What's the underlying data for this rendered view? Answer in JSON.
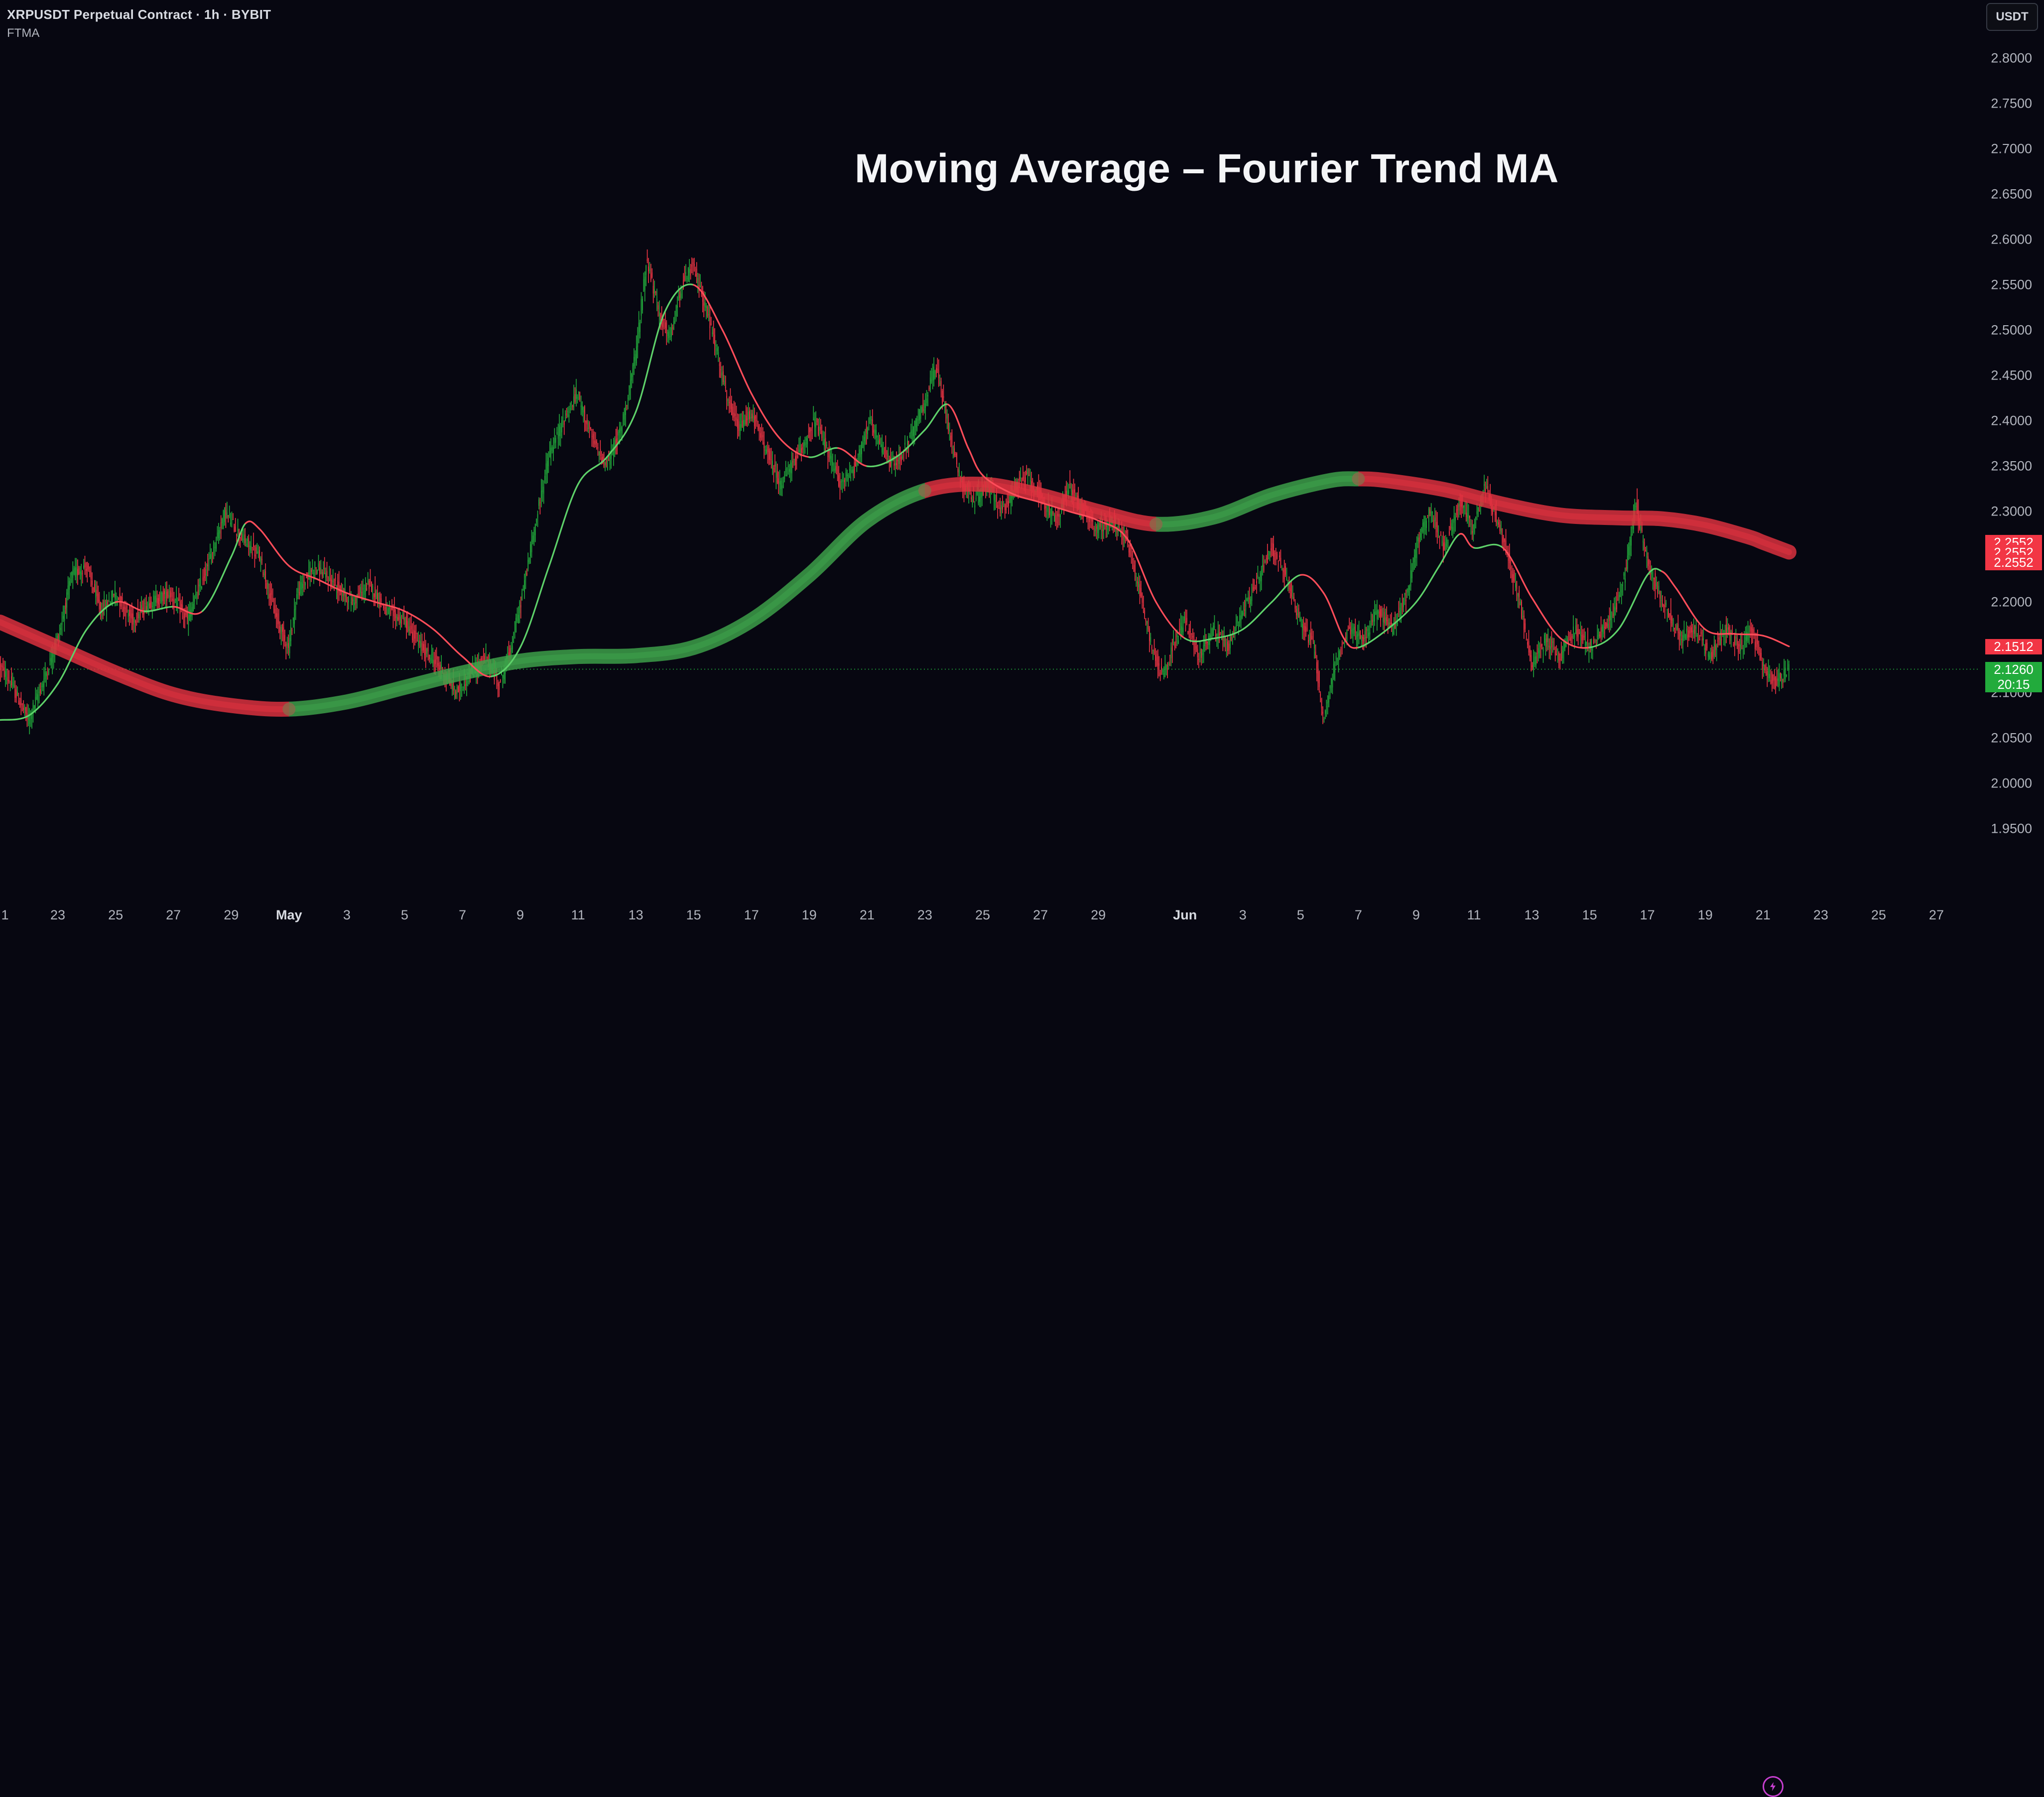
{
  "header": {
    "symbol_line": "XRPUSDT Perpetual Contract · 1h · BYBIT",
    "indicator_name": "FTMA"
  },
  "title": "Moving Average – Fourier Trend MA",
  "currency_button": "USDT",
  "colors": {
    "background": "#070711",
    "up_candle": "#22ab3c",
    "down_candle": "#f23645",
    "ma_bullish": "#3ea34a",
    "ma_bearish": "#e0323f",
    "fast_ma_up": "#5ed16a",
    "fast_ma_down": "#ff4d5a"
  },
  "price_axis": {
    "ticks": [
      "2.8000",
      "2.7500",
      "2.7000",
      "2.6500",
      "2.6000",
      "2.5500",
      "2.5000",
      "2.4500",
      "2.4000",
      "2.3500",
      "2.3000",
      "2.2500",
      "2.2000",
      "2.1500",
      "2.1000",
      "2.0500",
      "2.0000",
      "1.9500"
    ],
    "labels": [
      {
        "text": "2.2552",
        "color": "red",
        "price": 2.2662
      },
      {
        "text": "2.2552",
        "color": "red",
        "price": 2.2552
      },
      {
        "text": "2.2552",
        "color": "red",
        "price": 2.2442
      },
      {
        "text": "2.1512",
        "color": "red",
        "price": 2.1512
      },
      {
        "text": "2.1260",
        "color": "green",
        "price": 2.126
      },
      {
        "text": "20:15",
        "color": "green",
        "price": 2.1095
      }
    ]
  },
  "time_axis": {
    "ticks": [
      {
        "label": "1",
        "day": 1,
        "bold": false
      },
      {
        "label": "23",
        "day": 23,
        "bold": false
      },
      {
        "label": "25",
        "day": 25,
        "bold": false
      },
      {
        "label": "27",
        "day": 27,
        "bold": false
      },
      {
        "label": "29",
        "day": 29,
        "bold": false
      },
      {
        "label": "May",
        "day": 31,
        "bold": true
      },
      {
        "label": "3",
        "day": 33,
        "bold": false
      },
      {
        "label": "5",
        "day": 35,
        "bold": false
      },
      {
        "label": "7",
        "day": 37,
        "bold": false
      },
      {
        "label": "9",
        "day": 39,
        "bold": false
      },
      {
        "label": "11",
        "day": 41,
        "bold": false
      },
      {
        "label": "13",
        "day": 43,
        "bold": false
      },
      {
        "label": "15",
        "day": 45,
        "bold": false
      },
      {
        "label": "17",
        "day": 47,
        "bold": false
      },
      {
        "label": "19",
        "day": 49,
        "bold": false
      },
      {
        "label": "21",
        "day": 51,
        "bold": false
      },
      {
        "label": "23",
        "day": 53,
        "bold": false
      },
      {
        "label": "25",
        "day": 55,
        "bold": false
      },
      {
        "label": "27",
        "day": 57,
        "bold": false
      },
      {
        "label": "29",
        "day": 59,
        "bold": false
      },
      {
        "label": "Jun",
        "day": 62,
        "bold": true
      },
      {
        "label": "3",
        "day": 64,
        "bold": false
      },
      {
        "label": "5",
        "day": 66,
        "bold": false
      },
      {
        "label": "7",
        "day": 68,
        "bold": false
      },
      {
        "label": "9",
        "day": 70,
        "bold": false
      },
      {
        "label": "11",
        "day": 72,
        "bold": false
      },
      {
        "label": "13",
        "day": 74,
        "bold": false
      },
      {
        "label": "15",
        "day": 76,
        "bold": false
      },
      {
        "label": "17",
        "day": 78,
        "bold": false
      },
      {
        "label": "19",
        "day": 80,
        "bold": false
      },
      {
        "label": "21",
        "day": 82,
        "bold": false
      },
      {
        "label": "23",
        "day": 84,
        "bold": false
      },
      {
        "label": "25",
        "day": 86,
        "bold": false
      },
      {
        "label": "27",
        "day": 88,
        "bold": false
      }
    ]
  },
  "chart_data": {
    "type": "line",
    "title": "Moving Average – Fourier Trend MA",
    "symbol": "XRPUSDT",
    "interval": "1h",
    "last_price": 2.126,
    "countdown": "20:15",
    "y_range": [
      1.93,
      2.82
    ],
    "x_range_days": [
      21.0,
      89.5
    ],
    "close_path": [
      [
        21.0,
        2.13
      ],
      [
        21.4,
        2.11
      ],
      [
        22.0,
        2.07
      ],
      [
        22.6,
        2.12
      ],
      [
        23.1,
        2.17
      ],
      [
        23.5,
        2.23
      ],
      [
        24.0,
        2.24
      ],
      [
        24.5,
        2.19
      ],
      [
        25.0,
        2.21
      ],
      [
        25.6,
        2.18
      ],
      [
        26.2,
        2.2
      ],
      [
        26.9,
        2.21
      ],
      [
        27.5,
        2.18
      ],
      [
        28.2,
        2.24
      ],
      [
        28.8,
        2.3
      ],
      [
        29.4,
        2.27
      ],
      [
        30.0,
        2.25
      ],
      [
        30.6,
        2.18
      ],
      [
        31.0,
        2.15
      ],
      [
        31.3,
        2.21
      ],
      [
        31.9,
        2.24
      ],
      [
        32.6,
        2.22
      ],
      [
        33.2,
        2.2
      ],
      [
        33.8,
        2.22
      ],
      [
        34.4,
        2.19
      ],
      [
        35.0,
        2.18
      ],
      [
        35.6,
        2.15
      ],
      [
        36.2,
        2.13
      ],
      [
        36.8,
        2.1
      ],
      [
        37.3,
        2.12
      ],
      [
        37.8,
        2.14
      ],
      [
        38.3,
        2.11
      ],
      [
        38.7,
        2.15
      ],
      [
        39.1,
        2.21
      ],
      [
        39.5,
        2.28
      ],
      [
        40.0,
        2.36
      ],
      [
        40.5,
        2.4
      ],
      [
        41.0,
        2.43
      ],
      [
        41.5,
        2.38
      ],
      [
        42.0,
        2.35
      ],
      [
        42.5,
        2.39
      ],
      [
        43.0,
        2.47
      ],
      [
        43.4,
        2.58
      ],
      [
        43.8,
        2.52
      ],
      [
        44.2,
        2.49
      ],
      [
        44.6,
        2.55
      ],
      [
        45.0,
        2.57
      ],
      [
        45.4,
        2.53
      ],
      [
        45.8,
        2.48
      ],
      [
        46.2,
        2.42
      ],
      [
        46.6,
        2.39
      ],
      [
        47.0,
        2.41
      ],
      [
        47.5,
        2.37
      ],
      [
        48.0,
        2.33
      ],
      [
        48.6,
        2.36
      ],
      [
        49.2,
        2.4
      ],
      [
        49.6,
        2.37
      ],
      [
        50.1,
        2.33
      ],
      [
        50.6,
        2.35
      ],
      [
        51.1,
        2.4
      ],
      [
        51.5,
        2.37
      ],
      [
        52.0,
        2.35
      ],
      [
        52.5,
        2.38
      ],
      [
        53.0,
        2.42
      ],
      [
        53.4,
        2.46
      ],
      [
        53.8,
        2.4
      ],
      [
        54.2,
        2.34
      ],
      [
        54.7,
        2.31
      ],
      [
        55.2,
        2.33
      ],
      [
        55.7,
        2.3
      ],
      [
        56.2,
        2.33
      ],
      [
        56.6,
        2.34
      ],
      [
        57.1,
        2.31
      ],
      [
        57.6,
        2.29
      ],
      [
        58.0,
        2.33
      ],
      [
        58.5,
        2.3
      ],
      [
        59.0,
        2.28
      ],
      [
        59.5,
        2.29
      ],
      [
        60.0,
        2.27
      ],
      [
        60.4,
        2.22
      ],
      [
        60.8,
        2.16
      ],
      [
        61.2,
        2.12
      ],
      [
        61.6,
        2.15
      ],
      [
        62.0,
        2.18
      ],
      [
        62.5,
        2.14
      ],
      [
        63.0,
        2.17
      ],
      [
        63.5,
        2.15
      ],
      [
        64.0,
        2.19
      ],
      [
        64.5,
        2.22
      ],
      [
        65.0,
        2.26
      ],
      [
        65.5,
        2.23
      ],
      [
        66.0,
        2.18
      ],
      [
        66.5,
        2.15
      ],
      [
        66.8,
        2.07
      ],
      [
        67.2,
        2.13
      ],
      [
        67.7,
        2.17
      ],
      [
        68.2,
        2.16
      ],
      [
        68.7,
        2.19
      ],
      [
        69.2,
        2.17
      ],
      [
        69.7,
        2.21
      ],
      [
        70.1,
        2.27
      ],
      [
        70.5,
        2.3
      ],
      [
        71.0,
        2.26
      ],
      [
        71.5,
        2.31
      ],
      [
        72.0,
        2.28
      ],
      [
        72.4,
        2.33
      ],
      [
        72.8,
        2.29
      ],
      [
        73.2,
        2.25
      ],
      [
        73.6,
        2.2
      ],
      [
        74.0,
        2.13
      ],
      [
        74.5,
        2.16
      ],
      [
        75.0,
        2.14
      ],
      [
        75.5,
        2.17
      ],
      [
        76.0,
        2.15
      ],
      [
        76.5,
        2.17
      ],
      [
        77.0,
        2.2
      ],
      [
        77.3,
        2.24
      ],
      [
        77.6,
        2.31
      ],
      [
        77.9,
        2.26
      ],
      [
        78.3,
        2.22
      ],
      [
        78.7,
        2.19
      ],
      [
        79.2,
        2.16
      ],
      [
        79.7,
        2.17
      ],
      [
        80.2,
        2.14
      ],
      [
        80.7,
        2.17
      ],
      [
        81.2,
        2.15
      ],
      [
        81.6,
        2.17
      ],
      [
        82.0,
        2.13
      ],
      [
        82.4,
        2.11
      ],
      [
        82.9,
        2.126
      ]
    ],
    "candle_band": 0.0145,
    "slow_ma": [
      [
        21.0,
        2.178
      ],
      [
        23.0,
        2.15
      ],
      [
        25.0,
        2.122
      ],
      [
        27.0,
        2.098
      ],
      [
        29.0,
        2.086
      ],
      [
        31.0,
        2.082
      ],
      [
        33.0,
        2.09
      ],
      [
        35.0,
        2.106
      ],
      [
        37.0,
        2.122
      ],
      [
        39.0,
        2.135
      ],
      [
        41.0,
        2.14
      ],
      [
        43.0,
        2.141
      ],
      [
        45.0,
        2.15
      ],
      [
        47.0,
        2.18
      ],
      [
        49.0,
        2.23
      ],
      [
        51.0,
        2.29
      ],
      [
        53.0,
        2.323
      ],
      [
        55.0,
        2.33
      ],
      [
        57.0,
        2.318
      ],
      [
        59.0,
        2.3
      ],
      [
        61.0,
        2.286
      ],
      [
        63.0,
        2.294
      ],
      [
        65.0,
        2.318
      ],
      [
        67.0,
        2.334
      ],
      [
        68.0,
        2.336
      ],
      [
        69.0,
        2.334
      ],
      [
        71.0,
        2.324
      ],
      [
        73.0,
        2.308
      ],
      [
        75.0,
        2.296
      ],
      [
        77.0,
        2.293
      ],
      [
        78.5,
        2.292
      ],
      [
        80.0,
        2.285
      ],
      [
        81.5,
        2.272
      ],
      [
        82.0,
        2.266
      ],
      [
        82.9,
        2.2552
      ]
    ],
    "slow_ma_segments": [
      {
        "state": "bearish",
        "from": 21.0,
        "to": 31.0
      },
      {
        "state": "bullish",
        "from": 31.0,
        "to": 53.0
      },
      {
        "state": "bearish",
        "from": 53.0,
        "to": 61.0
      },
      {
        "state": "bullish",
        "from": 61.0,
        "to": 68.0
      },
      {
        "state": "bearish",
        "from": 68.0,
        "to": 82.9
      }
    ],
    "fast_ma": [
      [
        21.0,
        2.07
      ],
      [
        22.0,
        2.075
      ],
      [
        23.0,
        2.11
      ],
      [
        24.0,
        2.17
      ],
      [
        25.0,
        2.2
      ],
      [
        26.0,
        2.19
      ],
      [
        27.0,
        2.195
      ],
      [
        28.0,
        2.19
      ],
      [
        29.0,
        2.25
      ],
      [
        29.5,
        2.287
      ],
      [
        30.0,
        2.28
      ],
      [
        31.0,
        2.24
      ],
      [
        32.0,
        2.225
      ],
      [
        33.0,
        2.21
      ],
      [
        34.0,
        2.2
      ],
      [
        35.0,
        2.19
      ],
      [
        36.0,
        2.17
      ],
      [
        37.0,
        2.14
      ],
      [
        38.0,
        2.118
      ],
      [
        39.0,
        2.15
      ],
      [
        40.0,
        2.24
      ],
      [
        41.0,
        2.33
      ],
      [
        42.0,
        2.36
      ],
      [
        43.0,
        2.41
      ],
      [
        44.0,
        2.52
      ],
      [
        45.0,
        2.55
      ],
      [
        46.0,
        2.5
      ],
      [
        47.0,
        2.43
      ],
      [
        48.0,
        2.38
      ],
      [
        49.0,
        2.36
      ],
      [
        50.0,
        2.37
      ],
      [
        51.0,
        2.35
      ],
      [
        52.0,
        2.36
      ],
      [
        53.0,
        2.39
      ],
      [
        53.8,
        2.418
      ],
      [
        54.5,
        2.37
      ],
      [
        55.0,
        2.34
      ],
      [
        56.0,
        2.32
      ],
      [
        57.0,
        2.31
      ],
      [
        58.0,
        2.3
      ],
      [
        59.0,
        2.29
      ],
      [
        60.0,
        2.27
      ],
      [
        61.0,
        2.2
      ],
      [
        62.0,
        2.16
      ],
      [
        63.0,
        2.16
      ],
      [
        64.0,
        2.17
      ],
      [
        65.0,
        2.2
      ],
      [
        66.0,
        2.23
      ],
      [
        66.8,
        2.21
      ],
      [
        67.5,
        2.16
      ],
      [
        68.0,
        2.15
      ],
      [
        69.0,
        2.17
      ],
      [
        70.0,
        2.2
      ],
      [
        70.8,
        2.24
      ],
      [
        71.5,
        2.275
      ],
      [
        72.0,
        2.26
      ],
      [
        73.0,
        2.26
      ],
      [
        74.0,
        2.205
      ],
      [
        75.0,
        2.16
      ],
      [
        76.0,
        2.15
      ],
      [
        77.0,
        2.17
      ],
      [
        78.0,
        2.23
      ],
      [
        78.5,
        2.234
      ],
      [
        79.0,
        2.215
      ],
      [
        80.0,
        2.17
      ],
      [
        81.0,
        2.165
      ],
      [
        82.0,
        2.163
      ],
      [
        82.9,
        2.1512
      ]
    ]
  }
}
